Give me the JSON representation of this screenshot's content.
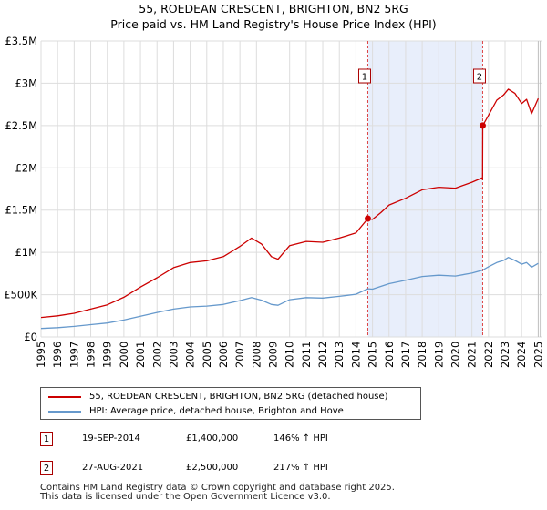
{
  "title_line1": "55, ROEDEAN CRESCENT, BRIGHTON, BN2 5RG",
  "title_line2": "Price paid vs. HM Land Registry's House Price Index (HPI)",
  "colors": {
    "property": "#cc0000",
    "hpi": "#6699cc",
    "shade": "#e8eefb",
    "marker": "#cc0000",
    "grid": "#dddddd"
  },
  "chart_data": {
    "type": "line",
    "title": "55, ROEDEAN CRESCENT, BRIGHTON, BN2 5RG — Price paid vs. HM Land Registry's House Price Index (HPI)",
    "xlabel": "",
    "ylabel": "",
    "xlim": [
      1995,
      2025.2
    ],
    "ylim": [
      0,
      3500000
    ],
    "y_ticks": [
      0,
      500000,
      1000000,
      1500000,
      2000000,
      2500000,
      3000000,
      3500000
    ],
    "y_tick_labels": [
      "£0",
      "£500K",
      "£1M",
      "£1.5M",
      "£2M",
      "£2.5M",
      "£3M",
      "£3.5M"
    ],
    "x_ticks": [
      1995,
      1996,
      1997,
      1998,
      1999,
      2000,
      2001,
      2002,
      2003,
      2004,
      2005,
      2006,
      2007,
      2008,
      2009,
      2010,
      2011,
      2012,
      2013,
      2014,
      2015,
      2016,
      2017,
      2018,
      2019,
      2020,
      2021,
      2022,
      2023,
      2024,
      2025
    ],
    "grid": true,
    "shaded_range": [
      2014.72,
      2021.65
    ],
    "series": [
      {
        "name": "55, ROEDEAN CRESCENT, BRIGHTON, BN2 5RG (detached house)",
        "color": "#cc0000",
        "x": [
          1995,
          1996,
          1997,
          1998,
          1999,
          2000,
          2001,
          2002,
          2003,
          2004,
          2005,
          2006,
          2007,
          2007.7,
          2008.3,
          2008.9,
          2009.3,
          2010,
          2011,
          2012,
          2013,
          2014,
          2014.72,
          2015,
          2015.5,
          2016,
          2017,
          2018,
          2019,
          2020,
          2021,
          2021.6,
          2021.64,
          2021.65,
          2022,
          2022.5,
          2022.9,
          2023.2,
          2023.6,
          2024,
          2024.3,
          2024.6,
          2025
        ],
        "y": [
          230000,
          250000,
          280000,
          330000,
          380000,
          470000,
          590000,
          700000,
          820000,
          880000,
          900000,
          950000,
          1070000,
          1170000,
          1100000,
          950000,
          920000,
          1080000,
          1130000,
          1120000,
          1170000,
          1230000,
          1400000,
          1390000,
          1470000,
          1560000,
          1640000,
          1740000,
          1770000,
          1760000,
          1830000,
          1880000,
          1860000,
          2500000,
          2620000,
          2800000,
          2860000,
          2930000,
          2880000,
          2760000,
          2810000,
          2640000,
          2820000
        ]
      },
      {
        "name": "HPI: Average price, detached house, Brighton and Hove",
        "color": "#6699cc",
        "x": [
          1995,
          1996,
          1997,
          1998,
          1999,
          2000,
          2001,
          2002,
          2003,
          2004,
          2005,
          2006,
          2007,
          2007.7,
          2008.3,
          2008.9,
          2009.3,
          2010,
          2011,
          2012,
          2013,
          2014,
          2014.72,
          2015,
          2016,
          2017,
          2018,
          2019,
          2020,
          2021,
          2021.65,
          2022,
          2022.5,
          2022.9,
          2023.2,
          2023.6,
          2024,
          2024.3,
          2024.6,
          2025
        ],
        "y": [
          100000,
          110000,
          125000,
          145000,
          165000,
          200000,
          245000,
          290000,
          330000,
          355000,
          365000,
          385000,
          430000,
          465000,
          435000,
          385000,
          375000,
          440000,
          465000,
          460000,
          480000,
          505000,
          570000,
          565000,
          630000,
          670000,
          715000,
          730000,
          720000,
          755000,
          790000,
          830000,
          880000,
          905000,
          940000,
          905000,
          860000,
          880000,
          825000,
          870000
        ]
      }
    ],
    "sales": [
      {
        "label": "1",
        "x": 2014.72,
        "y": 1400000
      },
      {
        "label": "2",
        "x": 2021.65,
        "y": 2500000
      }
    ]
  },
  "legend": {
    "property": "55, ROEDEAN CRESCENT, BRIGHTON, BN2 5RG (detached house)",
    "hpi": "HPI: Average price, detached house, Brighton and Hove"
  },
  "transactions": [
    {
      "num": "1",
      "date": "19-SEP-2014",
      "price": "£1,400,000",
      "hpi": "146% ↑ HPI"
    },
    {
      "num": "2",
      "date": "27-AUG-2021",
      "price": "£2,500,000",
      "hpi": "217% ↑ HPI"
    }
  ],
  "footer": {
    "line1": "Contains HM Land Registry data © Crown copyright and database right 2025.",
    "line2": "This data is licensed under the Open Government Licence v3.0."
  }
}
